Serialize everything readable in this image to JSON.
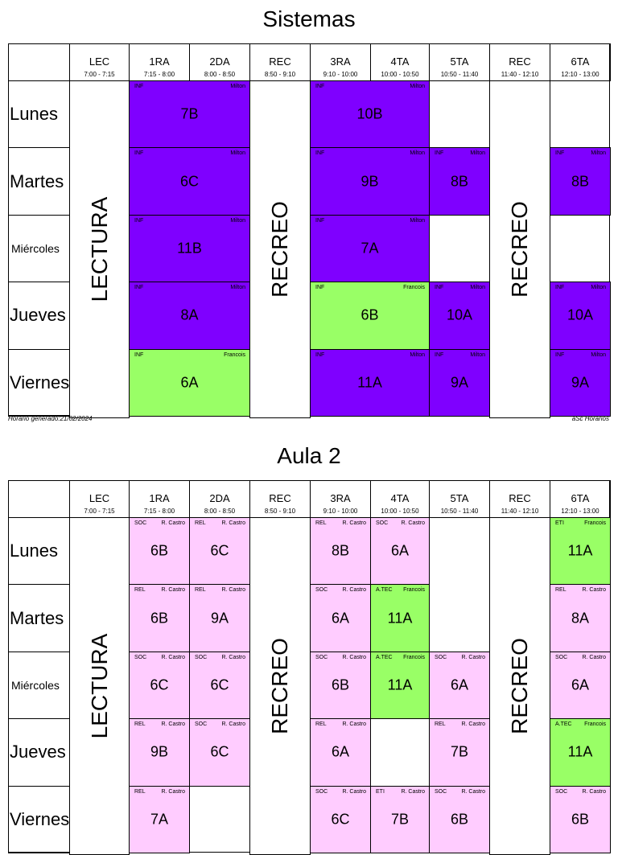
{
  "colors": {
    "purple": "#7f00ff",
    "green": "#99ff66",
    "pink": "#ffccff"
  },
  "columns": [
    {
      "name": "LEC",
      "time": "7:00 - 7:15"
    },
    {
      "name": "1RA",
      "time": "7:15 - 8:00"
    },
    {
      "name": "2DA",
      "time": "8:00 - 8:50"
    },
    {
      "name": "REC",
      "time": "8:50 - 9:10"
    },
    {
      "name": "3RA",
      "time": "9:10 - 10:00"
    },
    {
      "name": "4TA",
      "time": "10:00 - 10:50"
    },
    {
      "name": "5TA",
      "time": "10:50 - 11:40"
    },
    {
      "name": "REC",
      "time": "11:40 - 12:10"
    },
    {
      "name": "6TA",
      "time": "12:10 - 13:00"
    }
  ],
  "days": [
    "Lunes",
    "Martes",
    "Miércoles",
    "Jueves",
    "Viernes"
  ],
  "breaks": {
    "lectura": "LECTURA",
    "recreo": "RECREO"
  },
  "footer": {
    "generated": "Horario generado:21/02/2024",
    "brand": "aSc Horarios"
  },
  "timetables": [
    {
      "title": "Sistemas",
      "lessons": [
        {
          "day": 0,
          "col": 1,
          "span": 2,
          "subject": "INF",
          "teacher": "Milton",
          "group": "7B",
          "color": "purple"
        },
        {
          "day": 0,
          "col": 4,
          "span": 2,
          "subject": "INF",
          "teacher": "Milton",
          "group": "10B",
          "color": "purple"
        },
        {
          "day": 1,
          "col": 1,
          "span": 2,
          "subject": "INF",
          "teacher": "Milton",
          "group": "6C",
          "color": "purple"
        },
        {
          "day": 1,
          "col": 4,
          "span": 2,
          "subject": "INF",
          "teacher": "Milton",
          "group": "9B",
          "color": "purple"
        },
        {
          "day": 1,
          "col": 6,
          "span": 1,
          "subject": "INF",
          "teacher": "Milton",
          "group": "8B",
          "color": "purple"
        },
        {
          "day": 1,
          "col": 8,
          "span": 1,
          "subject": "INF",
          "teacher": "Milton",
          "group": "8B",
          "color": "purple"
        },
        {
          "day": 2,
          "col": 1,
          "span": 2,
          "subject": "INF",
          "teacher": "Milton",
          "group": "11B",
          "color": "purple"
        },
        {
          "day": 2,
          "col": 4,
          "span": 2,
          "subject": "INF",
          "teacher": "Milton",
          "group": "7A",
          "color": "purple"
        },
        {
          "day": 3,
          "col": 1,
          "span": 2,
          "subject": "INF",
          "teacher": "Milton",
          "group": "8A",
          "color": "purple"
        },
        {
          "day": 3,
          "col": 4,
          "span": 2,
          "subject": "INF",
          "teacher": "Francois",
          "group": "6B",
          "color": "green"
        },
        {
          "day": 3,
          "col": 6,
          "span": 1,
          "subject": "INF",
          "teacher": "Milton",
          "group": "10A",
          "color": "purple"
        },
        {
          "day": 3,
          "col": 8,
          "span": 1,
          "subject": "INF",
          "teacher": "Milton",
          "group": "10A",
          "color": "purple"
        },
        {
          "day": 4,
          "col": 1,
          "span": 2,
          "subject": "INF",
          "teacher": "Francois",
          "group": "6A",
          "color": "green"
        },
        {
          "day": 4,
          "col": 4,
          "span": 2,
          "subject": "INF",
          "teacher": "Milton",
          "group": "11A",
          "color": "purple"
        },
        {
          "day": 4,
          "col": 6,
          "span": 1,
          "subject": "INF",
          "teacher": "Milton",
          "group": "9A",
          "color": "purple"
        },
        {
          "day": 4,
          "col": 8,
          "span": 1,
          "subject": "INF",
          "teacher": "Milton",
          "group": "9A",
          "color": "purple"
        }
      ]
    },
    {
      "title": "Aula 2",
      "lessons": [
        {
          "day": 0,
          "col": 1,
          "span": 1,
          "subject": "SOC",
          "teacher": "R. Castro",
          "group": "6B",
          "color": "pink"
        },
        {
          "day": 0,
          "col": 2,
          "span": 1,
          "subject": "REL",
          "teacher": "R. Castro",
          "group": "6C",
          "color": "pink"
        },
        {
          "day": 0,
          "col": 4,
          "span": 1,
          "subject": "REL",
          "teacher": "R. Castro",
          "group": "8B",
          "color": "pink"
        },
        {
          "day": 0,
          "col": 5,
          "span": 1,
          "subject": "SOC",
          "teacher": "R. Castro",
          "group": "6A",
          "color": "pink"
        },
        {
          "day": 0,
          "col": 8,
          "span": 1,
          "subject": "ETI",
          "teacher": "Francois",
          "group": "11A",
          "color": "green"
        },
        {
          "day": 1,
          "col": 1,
          "span": 1,
          "subject": "REL",
          "teacher": "R. Castro",
          "group": "6B",
          "color": "pink"
        },
        {
          "day": 1,
          "col": 2,
          "span": 1,
          "subject": "REL",
          "teacher": "R. Castro",
          "group": "9A",
          "color": "pink"
        },
        {
          "day": 1,
          "col": 4,
          "span": 1,
          "subject": "SOC",
          "teacher": "R. Castro",
          "group": "6A",
          "color": "pink"
        },
        {
          "day": 1,
          "col": 5,
          "span": 1,
          "subject": "A.TEC",
          "teacher": "Francois",
          "group": "11A",
          "color": "green"
        },
        {
          "day": 1,
          "col": 8,
          "span": 1,
          "subject": "REL",
          "teacher": "R. Castro",
          "group": "8A",
          "color": "pink"
        },
        {
          "day": 2,
          "col": 1,
          "span": 1,
          "subject": "SOC",
          "teacher": "R. Castro",
          "group": "6C",
          "color": "pink"
        },
        {
          "day": 2,
          "col": 2,
          "span": 1,
          "subject": "SOC",
          "teacher": "R. Castro",
          "group": "6C",
          "color": "pink"
        },
        {
          "day": 2,
          "col": 4,
          "span": 1,
          "subject": "SOC",
          "teacher": "R. Castro",
          "group": "6B",
          "color": "pink"
        },
        {
          "day": 2,
          "col": 5,
          "span": 1,
          "subject": "A.TEC",
          "teacher": "Francois",
          "group": "11A",
          "color": "green"
        },
        {
          "day": 2,
          "col": 6,
          "span": 1,
          "subject": "SOC",
          "teacher": "R. Castro",
          "group": "6A",
          "color": "pink"
        },
        {
          "day": 2,
          "col": 8,
          "span": 1,
          "subject": "SOC",
          "teacher": "R. Castro",
          "group": "6A",
          "color": "pink"
        },
        {
          "day": 3,
          "col": 1,
          "span": 1,
          "subject": "REL",
          "teacher": "R. Castro",
          "group": "9B",
          "color": "pink"
        },
        {
          "day": 3,
          "col": 2,
          "span": 1,
          "subject": "SOC",
          "teacher": "R. Castro",
          "group": "6C",
          "color": "pink"
        },
        {
          "day": 3,
          "col": 4,
          "span": 1,
          "subject": "REL",
          "teacher": "R. Castro",
          "group": "6A",
          "color": "pink"
        },
        {
          "day": 3,
          "col": 6,
          "span": 1,
          "subject": "REL",
          "teacher": "R. Castro",
          "group": "7B",
          "color": "pink"
        },
        {
          "day": 3,
          "col": 8,
          "span": 1,
          "subject": "A.TEC",
          "teacher": "Francois",
          "group": "11A",
          "color": "green"
        },
        {
          "day": 4,
          "col": 1,
          "span": 1,
          "subject": "REL",
          "teacher": "R. Castro",
          "group": "7A",
          "color": "pink"
        },
        {
          "day": 4,
          "col": 4,
          "span": 1,
          "subject": "SOC",
          "teacher": "R. Castro",
          "group": "6C",
          "color": "pink"
        },
        {
          "day": 4,
          "col": 5,
          "span": 1,
          "subject": "ETI",
          "teacher": "R. Castro",
          "group": "7B",
          "color": "pink"
        },
        {
          "day": 4,
          "col": 6,
          "span": 1,
          "subject": "SOC",
          "teacher": "R. Castro",
          "group": "6B",
          "color": "pink"
        },
        {
          "day": 4,
          "col": 8,
          "span": 1,
          "subject": "SOC",
          "teacher": "R. Castro",
          "group": "6B",
          "color": "pink"
        }
      ]
    }
  ]
}
